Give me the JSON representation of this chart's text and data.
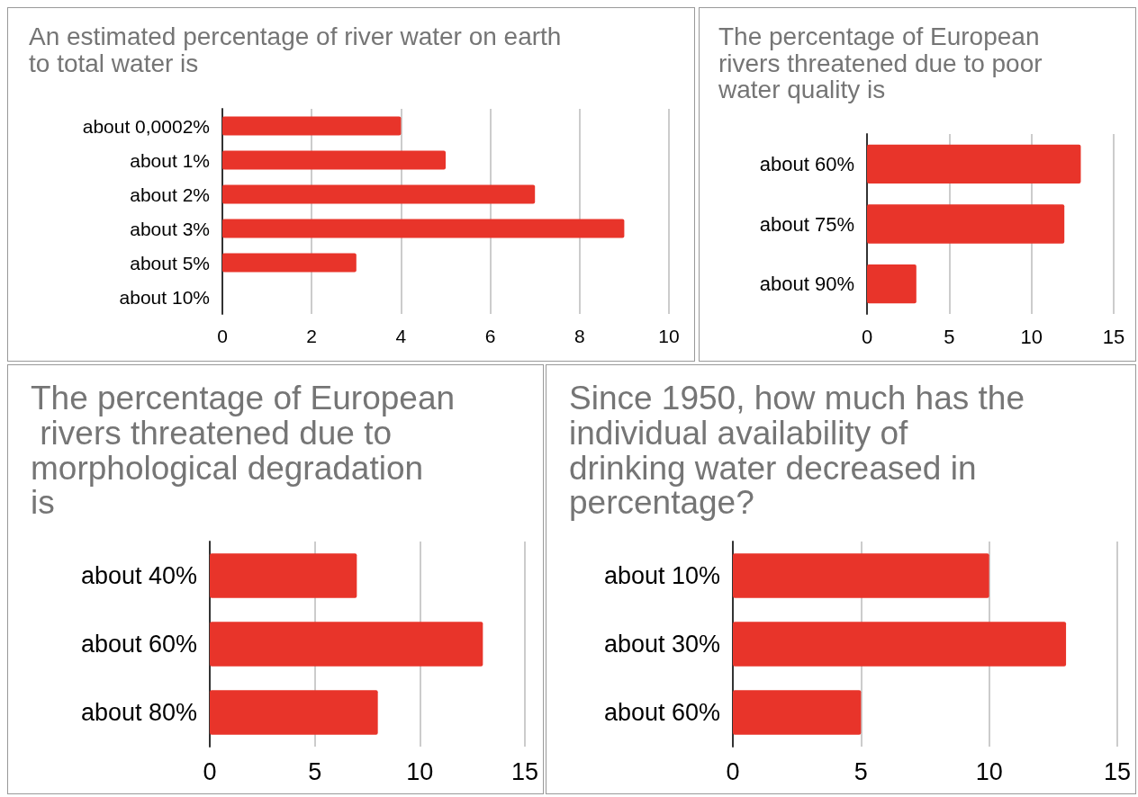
{
  "chart_data": [
    {
      "type": "bar",
      "orientation": "horizontal",
      "title": "An estimated percentage of river water on earth to total water is",
      "categories": [
        "about 0,0002%",
        "about 1%",
        "about 2%",
        "about 3%",
        "about 5%",
        "about 10%"
      ],
      "values": [
        4,
        5,
        7,
        9,
        3,
        0
      ],
      "color": "#e8342a",
      "xlim": [
        0,
        10
      ],
      "xticks": [
        0,
        2,
        4,
        6,
        8,
        10
      ],
      "grid": "x"
    },
    {
      "type": "bar",
      "orientation": "horizontal",
      "title": "The percentage of European rivers threatened due to poor water quality is",
      "categories": [
        "about 60%",
        "about 75%",
        "about 90%"
      ],
      "values": [
        13,
        12,
        3
      ],
      "color": "#e8342a",
      "xlim": [
        0,
        15
      ],
      "xticks": [
        0,
        5,
        10,
        15
      ],
      "grid": "x"
    },
    {
      "type": "bar",
      "orientation": "horizontal",
      "title": "The percentage of European rivers threatened due to morphological degradation is",
      "categories": [
        "about 40%",
        "about 60%",
        "about 80%"
      ],
      "values": [
        7,
        13,
        8
      ],
      "color": "#e8342a",
      "xlim": [
        0,
        15
      ],
      "xticks": [
        0,
        5,
        10,
        15
      ],
      "grid": "x"
    },
    {
      "type": "bar",
      "orientation": "horizontal",
      "title": "Since 1950, how much has the individual availability of drinking water decreased in percentage?",
      "categories": [
        "about 10%",
        "about 30%",
        "about 60%"
      ],
      "values": [
        10,
        13,
        5
      ],
      "color": "#e8342a",
      "xlim": [
        0,
        15
      ],
      "xticks": [
        0,
        5,
        10,
        15
      ],
      "grid": "x"
    }
  ]
}
